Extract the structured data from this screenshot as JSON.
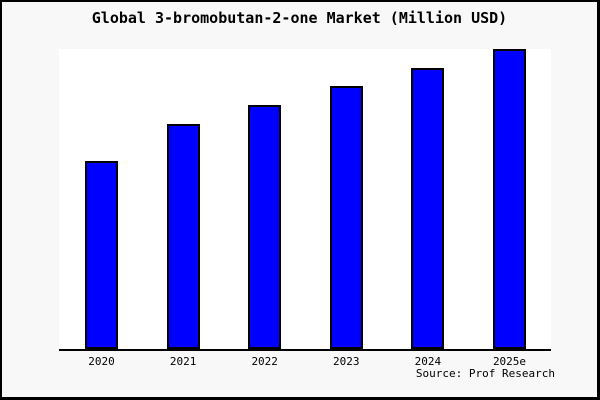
{
  "chart_data": {
    "type": "bar",
    "title": "Global 3-bromobutan-2-one Market (Million USD)",
    "categories": [
      "2020",
      "2021",
      "2022",
      "2023",
      "2024",
      "2025e"
    ],
    "values": [
      62.7,
      75.0,
      81.3,
      87.7,
      93.7,
      100.0
    ],
    "values_unit": "relative height, 2025e = 100 (y-axis unlabeled in image)",
    "xlabel": "",
    "ylabel": "",
    "ylim": [
      0,
      100
    ],
    "grid": false,
    "legend": "none",
    "y_axis_ticks": "none",
    "bar_color": "#0000ff",
    "bar_border_color": "#000000",
    "axis_color": "#000000",
    "plot_bg": "#ffffff",
    "outer_bg": "#f8f8f8",
    "frame_border_color": "#000000"
  },
  "footer": {
    "source_note": "Source: Prof Research"
  }
}
